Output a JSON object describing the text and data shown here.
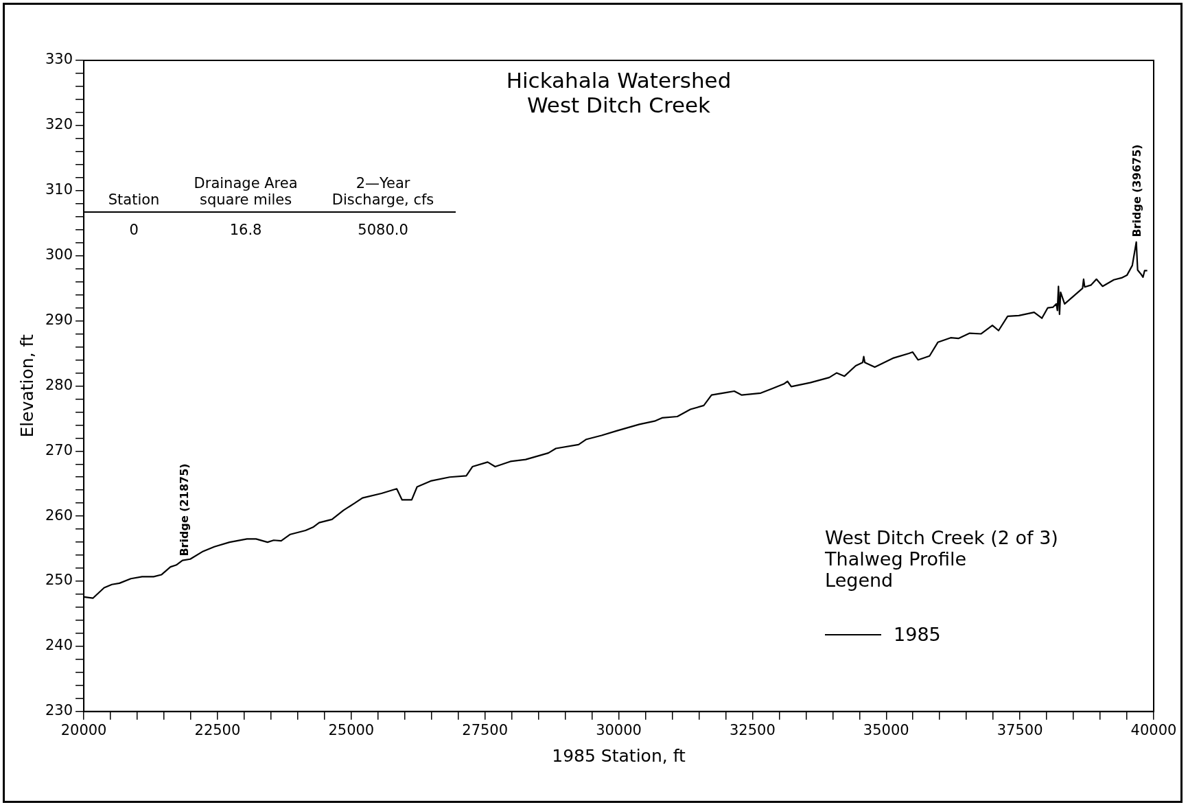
{
  "chart_data": {
    "type": "line",
    "title": "Hickahala Watershed",
    "subtitle": "West Ditch Creek",
    "xlabel": "1985 Station, ft",
    "ylabel": "Elevation, ft",
    "legend_title": "West Ditch Creek (2 of 3)\nThalweg Profile\nLegend",
    "legend": "right",
    "grid": false,
    "marker": "none",
    "line_style": "solid",
    "xlim": [
      20000,
      40000
    ],
    "ylim": [
      230,
      330
    ],
    "xticks": [
      20000,
      {
        "value": 20500,
        "label": null
      },
      {
        "value": 21000,
        "label": null
      },
      {
        "value": 21500,
        "label": null
      },
      {
        "value": 22000,
        "label": null
      },
      22500,
      {
        "value": 23000,
        "label": null
      },
      {
        "value": 23500,
        "label": null
      },
      {
        "value": 24000,
        "label": null
      },
      {
        "value": 24500,
        "label": null
      },
      25000,
      {
        "value": 25500,
        "label": null
      },
      {
        "value": 26000,
        "label": null
      },
      {
        "value": 26500,
        "label": null
      },
      {
        "value": 27000,
        "label": null
      },
      27500,
      {
        "value": 28000,
        "label": null
      },
      {
        "value": 28500,
        "label": null
      },
      {
        "value": 29000,
        "label": null
      },
      {
        "value": 29500,
        "label": null
      },
      30000,
      {
        "value": 30500,
        "label": null
      },
      {
        "value": 31000,
        "label": null
      },
      {
        "value": 31500,
        "label": null
      },
      {
        "value": 32000,
        "label": null
      },
      32500,
      {
        "value": 33000,
        "label": null
      },
      {
        "value": 33500,
        "label": null
      },
      {
        "value": 34000,
        "label": null
      },
      {
        "value": 34500,
        "label": null
      },
      35000,
      {
        "value": 35500,
        "label": null
      },
      {
        "value": 36000,
        "label": null
      },
      {
        "value": 36500,
        "label": null
      },
      {
        "value": 37000,
        "label": null
      },
      37500,
      {
        "value": 38000,
        "label": null
      },
      {
        "value": 38500,
        "label": null
      },
      {
        "value": 39000,
        "label": null
      },
      {
        "value": 39500,
        "label": null
      },
      40000
    ],
    "yticks": [
      230,
      {
        "value": 232,
        "label": null
      },
      {
        "value": 234,
        "label": null
      },
      {
        "value": 236,
        "label": null
      },
      {
        "value": 238,
        "label": null
      },
      240,
      {
        "value": 242,
        "label": null
      },
      {
        "value": 244,
        "label": null
      },
      {
        "value": 246,
        "label": null
      },
      {
        "value": 248,
        "label": null
      },
      250,
      {
        "value": 252,
        "label": null
      },
      {
        "value": 254,
        "label": null
      },
      {
        "value": 256,
        "label": null
      },
      {
        "value": 258,
        "label": null
      },
      260,
      {
        "value": 262,
        "label": null
      },
      {
        "value": 264,
        "label": null
      },
      {
        "value": 266,
        "label": null
      },
      {
        "value": 268,
        "label": null
      },
      270,
      {
        "value": 272,
        "label": null
      },
      {
        "value": 274,
        "label": null
      },
      {
        "value": 276,
        "label": null
      },
      {
        "value": 278,
        "label": null
      },
      280,
      {
        "value": 282,
        "label": null
      },
      {
        "value": 284,
        "label": null
      },
      {
        "value": 286,
        "label": null
      },
      {
        "value": 288,
        "label": null
      },
      290,
      {
        "value": 292,
        "label": null
      },
      {
        "value": 294,
        "label": null
      },
      {
        "value": 296,
        "label": null
      },
      {
        "value": 298,
        "label": null
      },
      300,
      {
        "value": 302,
        "label": null
      },
      {
        "value": 304,
        "label": null
      },
      {
        "value": 306,
        "label": null
      },
      {
        "value": 308,
        "label": null
      },
      310,
      {
        "value": 312,
        "label": null
      },
      {
        "value": 314,
        "label": null
      },
      {
        "value": 316,
        "label": null
      },
      {
        "value": 318,
        "label": null
      },
      320,
      {
        "value": 322,
        "label": null
      },
      {
        "value": 324,
        "label": null
      },
      {
        "value": 326,
        "label": null
      },
      {
        "value": 328,
        "label": null
      },
      330
    ],
    "annotations": [
      "Station",
      "Drainage Area\nsquare miles",
      "2—Year\nDischarge, cfs",
      "0",
      "16.8",
      "5080.0",
      "Bridge (21875)",
      "Bridge (39675)"
    ],
    "series": [
      {
        "name": "1985",
        "color": "#000000",
        "x": [
          20000,
          20170,
          20380,
          20525,
          20667,
          20880,
          21090,
          21305,
          21450,
          21620,
          21730,
          21845,
          21990,
          22230,
          22440,
          22725,
          23050,
          23220,
          23435,
          23550,
          23690,
          23860,
          24145,
          24285,
          24400,
          24640,
          24855,
          25065,
          25210,
          25565,
          25850,
          25950,
          26130,
          26230,
          26485,
          26840,
          27150,
          27265,
          27550,
          27690,
          27975,
          28260,
          28685,
          28825,
          29250,
          29395,
          29680,
          29960,
          30385,
          30670,
          30810,
          31095,
          31340,
          31590,
          31735,
          32020,
          32160,
          32300,
          32655,
          32870,
          33085,
          33155,
          33225,
          33580,
          33935,
          34075,
          34220,
          34430,
          34560,
          34580,
          34600,
          34785,
          35140,
          35425,
          35495,
          35595,
          35810,
          35965,
          36205,
          36350,
          36560,
          36775,
          36985,
          37100,
          37270,
          37480,
          37765,
          37910,
          38020,
          38120,
          38180,
          38200,
          38220,
          38240,
          38260,
          38335,
          38670,
          38690,
          38710,
          38830,
          38930,
          39045,
          39255,
          39400,
          39500,
          39600,
          39675,
          39700,
          39760,
          39800,
          39830,
          39880
        ],
        "values": [
          247.6,
          247.4,
          249,
          249.5,
          249.7,
          250.4,
          250.7,
          250.7,
          251,
          252.2,
          252.5,
          253.2,
          253.4,
          254.6,
          255.3,
          256,
          256.5,
          256.5,
          256,
          256.3,
          256.2,
          257.2,
          257.8,
          258.3,
          259,
          259.5,
          260.9,
          262,
          262.8,
          263.5,
          264.2,
          262.5,
          262.5,
          264.5,
          265.4,
          266,
          266.2,
          267.6,
          268.3,
          267.6,
          268.4,
          268.7,
          269.7,
          270.4,
          271,
          271.8,
          272.4,
          273.1,
          274.1,
          274.6,
          275.1,
          275.3,
          276.4,
          277,
          278.6,
          279,
          279.2,
          278.6,
          278.9,
          279.6,
          280.3,
          280.7,
          279.9,
          280.5,
          281.3,
          282,
          281.5,
          283.1,
          283.6,
          284.5,
          283.6,
          282.9,
          284.3,
          285,
          285.2,
          284,
          284.6,
          286.7,
          287.4,
          287.3,
          288.1,
          288,
          289.3,
          288.5,
          290.7,
          290.8,
          291.3,
          290.4,
          292,
          292.1,
          292.6,
          291.6,
          295.3,
          291,
          294.4,
          292.6,
          295,
          296.4,
          295.2,
          295.5,
          296.4,
          295.3,
          296.3,
          296.6,
          297,
          298.5,
          302.1,
          297.8,
          297.2,
          296.7,
          297.7,
          297.7
        ]
      }
    ]
  }
}
